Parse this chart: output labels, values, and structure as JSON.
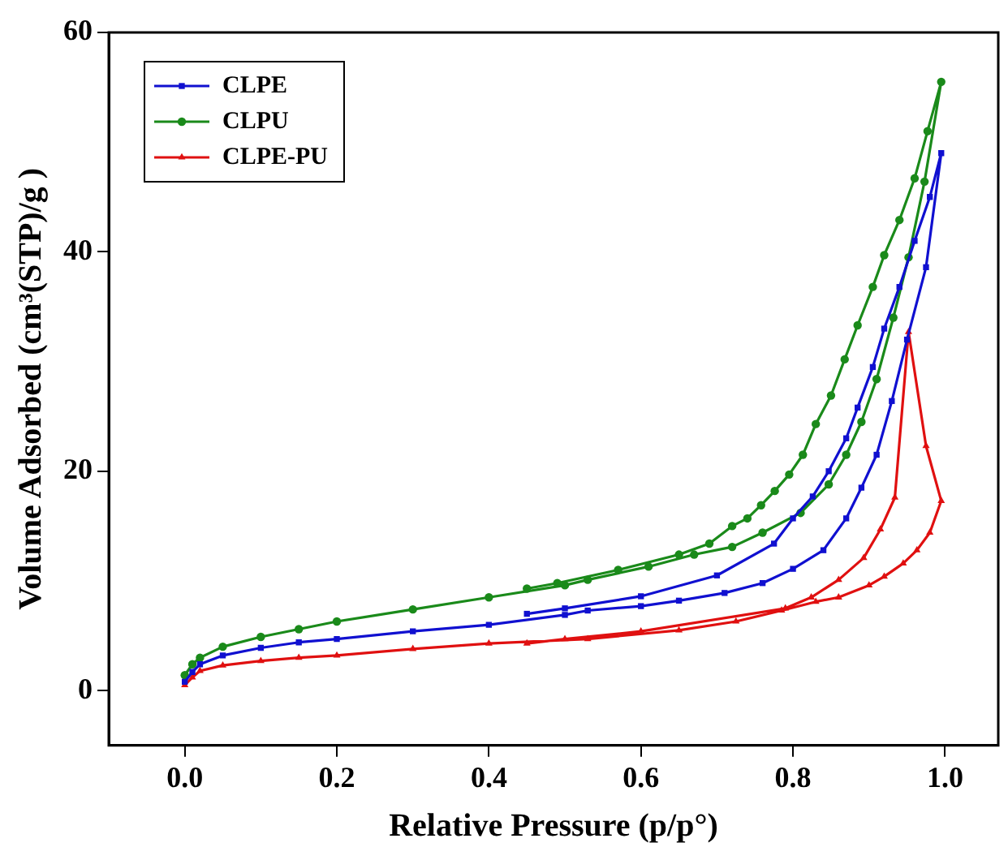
{
  "chart_data": {
    "type": "line",
    "xlabel": "Relative Pressure (p/p°)",
    "ylabel": "Volume Adsorbed (cm³(STP)/g )",
    "xlim": [
      -0.1,
      1.07
    ],
    "ylim": [
      -5,
      60
    ],
    "xticks": [
      {
        "value": 0,
        "label": "0.0"
      },
      0.2,
      0.4,
      0.6,
      0.8,
      {
        "value": 1,
        "label": "1.0"
      }
    ],
    "yticks": [
      0,
      20,
      40,
      60
    ],
    "grid": false,
    "legend": "top left",
    "line_style": "solid",
    "series": [
      {
        "name": "CLPE",
        "color": "#1010d0",
        "marker": "square",
        "x": [
          0.0,
          0.01,
          0.02,
          0.05,
          0.1,
          0.15,
          0.2,
          0.3,
          0.4,
          0.5,
          0.53,
          0.6,
          0.65,
          0.71,
          0.76,
          0.8,
          0.84,
          0.87,
          0.89,
          0.91,
          0.93,
          0.95,
          0.975,
          0.995,
          0.98,
          0.96,
          0.94,
          0.92,
          0.905,
          0.885,
          0.87,
          0.847,
          0.826,
          0.8,
          0.775,
          0.7,
          0.6,
          0.5,
          0.45
        ],
        "values": [
          0.8,
          1.7,
          2.4,
          3.2,
          3.9,
          4.4,
          4.7,
          5.4,
          6.0,
          6.9,
          7.3,
          7.7,
          8.2,
          8.9,
          9.8,
          11.1,
          12.8,
          15.7,
          18.5,
          21.5,
          26.4,
          32,
          38.6,
          49,
          45,
          41,
          36.8,
          33,
          29.5,
          25.8,
          23,
          20,
          17.7,
          15.7,
          13.4,
          10.5,
          8.6,
          7.5,
          7.0
        ]
      },
      {
        "name": "CLPU",
        "color": "#1a8a1a",
        "marker": "circle",
        "x": [
          0.0,
          0.01,
          0.02,
          0.05,
          0.1,
          0.15,
          0.2,
          0.3,
          0.4,
          0.5,
          0.53,
          0.61,
          0.67,
          0.72,
          0.76,
          0.81,
          0.847,
          0.87,
          0.89,
          0.91,
          0.932,
          0.952,
          0.973,
          0.995,
          0.977,
          0.96,
          0.94,
          0.92,
          0.905,
          0.885,
          0.868,
          0.85,
          0.83,
          0.813,
          0.795,
          0.776,
          0.758,
          0.74,
          0.72,
          0.69,
          0.65,
          0.57,
          0.49,
          0.45
        ],
        "values": [
          1.4,
          2.4,
          3.0,
          4.0,
          4.9,
          5.6,
          6.3,
          7.4,
          8.5,
          9.6,
          10.1,
          11.3,
          12.4,
          13.1,
          14.4,
          16.2,
          18.8,
          21.5,
          24.5,
          28.4,
          34,
          39.5,
          46.4,
          55.5,
          51,
          46.7,
          42.9,
          39.7,
          36.8,
          33.3,
          30.2,
          26.9,
          24.3,
          21.5,
          19.7,
          18.2,
          16.9,
          15.7,
          15,
          13.4,
          12.4,
          11.0,
          9.8,
          9.3
        ]
      },
      {
        "name": "CLPE-PU",
        "color": "#e01010",
        "marker": "triangle",
        "x": [
          0.0,
          0.01,
          0.02,
          0.05,
          0.1,
          0.15,
          0.2,
          0.3,
          0.4,
          0.53,
          0.65,
          0.725,
          0.785,
          0.83,
          0.86,
          0.9,
          0.92,
          0.945,
          0.963,
          0.98,
          0.995,
          0.975,
          0.952,
          0.934,
          0.915,
          0.893,
          0.86,
          0.824,
          0.79,
          0.6,
          0.5,
          0.45
        ],
        "values": [
          0.5,
          1.2,
          1.8,
          2.3,
          2.7,
          3.0,
          3.2,
          3.8,
          4.3,
          4.7,
          5.5,
          6.3,
          7.3,
          8.1,
          8.5,
          9.6,
          10.4,
          11.6,
          12.8,
          14.4,
          17.3,
          22.3,
          32.7,
          17.6,
          14.7,
          12.1,
          10.1,
          8.5,
          7.5,
          5.4,
          4.7,
          4.3
        ]
      }
    ]
  }
}
